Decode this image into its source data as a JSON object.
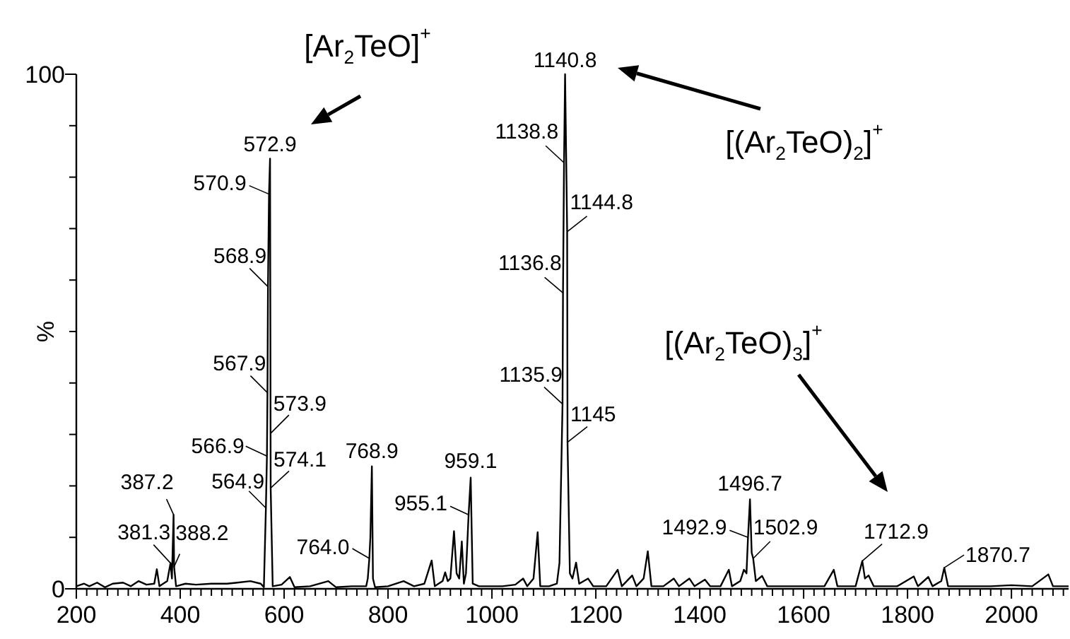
{
  "chart_data": {
    "type": "line",
    "ylabel": "%",
    "xlim": [
      200,
      2110
    ],
    "ylim": [
      0,
      100
    ],
    "xticks": [
      200,
      {
        "value": 220,
        "label": null
      },
      {
        "value": 240,
        "label": null
      },
      {
        "value": 260,
        "label": null
      },
      {
        "value": 280,
        "label": null
      },
      {
        "value": 300,
        "label": null
      },
      {
        "value": 320,
        "label": null
      },
      {
        "value": 340,
        "label": null
      },
      {
        "value": 360,
        "label": null
      },
      {
        "value": 380,
        "label": null
      },
      400,
      {
        "value": 420,
        "label": null
      },
      {
        "value": 440,
        "label": null
      },
      {
        "value": 460,
        "label": null
      },
      {
        "value": 480,
        "label": null
      },
      {
        "value": 500,
        "label": null
      },
      {
        "value": 520,
        "label": null
      },
      {
        "value": 540,
        "label": null
      },
      {
        "value": 560,
        "label": null
      },
      {
        "value": 580,
        "label": null
      },
      600,
      {
        "value": 620,
        "label": null
      },
      {
        "value": 640,
        "label": null
      },
      {
        "value": 660,
        "label": null
      },
      {
        "value": 680,
        "label": null
      },
      {
        "value": 700,
        "label": null
      },
      {
        "value": 720,
        "label": null
      },
      {
        "value": 740,
        "label": null
      },
      {
        "value": 760,
        "label": null
      },
      {
        "value": 780,
        "label": null
      },
      800,
      {
        "value": 820,
        "label": null
      },
      {
        "value": 840,
        "label": null
      },
      {
        "value": 860,
        "label": null
      },
      {
        "value": 880,
        "label": null
      },
      {
        "value": 900,
        "label": null
      },
      {
        "value": 920,
        "label": null
      },
      {
        "value": 940,
        "label": null
      },
      {
        "value": 960,
        "label": null
      },
      {
        "value": 980,
        "label": null
      },
      1000,
      {
        "value": 1020,
        "label": null
      },
      {
        "value": 1040,
        "label": null
      },
      {
        "value": 1060,
        "label": null
      },
      {
        "value": 1080,
        "label": null
      },
      {
        "value": 1100,
        "label": null
      },
      {
        "value": 1120,
        "label": null
      },
      {
        "value": 1140,
        "label": null
      },
      {
        "value": 1160,
        "label": null
      },
      {
        "value": 1180,
        "label": null
      },
      1200,
      {
        "value": 1220,
        "label": null
      },
      {
        "value": 1240,
        "label": null
      },
      {
        "value": 1260,
        "label": null
      },
      {
        "value": 1280,
        "label": null
      },
      {
        "value": 1300,
        "label": null
      },
      {
        "value": 1320,
        "label": null
      },
      {
        "value": 1340,
        "label": null
      },
      {
        "value": 1360,
        "label": null
      },
      {
        "value": 1380,
        "label": null
      },
      1400,
      {
        "value": 1420,
        "label": null
      },
      {
        "value": 1440,
        "label": null
      },
      {
        "value": 1460,
        "label": null
      },
      {
        "value": 1480,
        "label": null
      },
      {
        "value": 1500,
        "label": null
      },
      {
        "value": 1520,
        "label": null
      },
      {
        "value": 1540,
        "label": null
      },
      {
        "value": 1560,
        "label": null
      },
      {
        "value": 1580,
        "label": null
      },
      1600,
      {
        "value": 1620,
        "label": null
      },
      {
        "value": 1640,
        "label": null
      },
      {
        "value": 1660,
        "label": null
      },
      {
        "value": 1680,
        "label": null
      },
      {
        "value": 1700,
        "label": null
      },
      {
        "value": 1720,
        "label": null
      },
      {
        "value": 1740,
        "label": null
      },
      {
        "value": 1760,
        "label": null
      },
      {
        "value": 1780,
        "label": null
      },
      1800,
      {
        "value": 1820,
        "label": null
      },
      {
        "value": 1840,
        "label": null
      },
      {
        "value": 1860,
        "label": null
      },
      {
        "value": 1880,
        "label": null
      },
      {
        "value": 1900,
        "label": null
      },
      {
        "value": 1920,
        "label": null
      },
      {
        "value": 1940,
        "label": null
      },
      {
        "value": 1960,
        "label": null
      },
      {
        "value": 1980,
        "label": null
      },
      2000,
      {
        "value": 2020,
        "label": null
      },
      {
        "value": 2040,
        "label": null
      },
      {
        "value": 2060,
        "label": null
      },
      {
        "value": 2080,
        "label": null
      },
      {
        "value": 2100,
        "label": null
      }
    ],
    "yticks": [
      0,
      {
        "value": 10,
        "label": null
      },
      {
        "value": 20,
        "label": null
      },
      {
        "value": 30,
        "label": null
      },
      {
        "value": 40,
        "label": null
      },
      {
        "value": 50,
        "label": null
      },
      {
        "value": 60,
        "label": null
      },
      {
        "value": 70,
        "label": null
      },
      {
        "value": 80,
        "label": null
      },
      {
        "value": 90,
        "label": null
      },
      100
    ],
    "series": [
      {
        "color": "#000000",
        "x": [
          200,
          215,
          225,
          240,
          255,
          270,
          290,
          305,
          320,
          335,
          350,
          355,
          360,
          375,
          381.3,
          384,
          387.2,
          388.2,
          392,
          410,
          430,
          460,
          490,
          510,
          535,
          555,
          561,
          564.9,
          566.9,
          567.9,
          568.9,
          570.9,
          572.9,
          573.9,
          574.1,
          578,
          595,
          611,
          620,
          650,
          685,
          700,
          730,
          758,
          761,
          764.0,
          766,
          768.9,
          771,
          775,
          800,
          830,
          850,
          870,
          884,
          890,
          905,
          910,
          915,
          920,
          927,
          932,
          937,
          942,
          946,
          950,
          955.1,
          959.1,
          963,
          975,
          1000,
          1020,
          1045,
          1060,
          1068,
          1080,
          1088,
          1093,
          1110,
          1125,
          1130,
          1135.9,
          1136.8,
          1138.8,
          1140.8,
          1144.8,
          1145.5,
          1150,
          1155,
          1162,
          1168,
          1185,
          1195,
          1220,
          1242,
          1250,
          1270,
          1278,
          1292,
          1300,
          1307,
          1330,
          1350,
          1360,
          1380,
          1390,
          1410,
          1420,
          1440,
          1456,
          1462,
          1478,
          1485,
          1490,
          1492.9,
          1496.7,
          1500,
          1502.9,
          1508,
          1520,
          1530,
          1560,
          1600,
          1640,
          1658,
          1665,
          1700,
          1712.9,
          1718,
          1725,
          1735,
          1780,
          1812,
          1820,
          1840,
          1848,
          1865,
          1870.7,
          1878,
          1920,
          1960,
          2000,
          2040,
          2071,
          2080,
          2110
        ],
        "values": [
          0.5,
          1,
          0.5,
          1.2,
          0.3,
          1,
          1.2,
          0.5,
          1.5,
          0.8,
          1,
          3.8,
          0.5,
          1.5,
          5.0,
          2,
          14.4,
          4.3,
          0.5,
          1,
          0.8,
          1,
          1,
          1.2,
          1.5,
          1,
          0.3,
          15.7,
          25.8,
          38.1,
          58.7,
          76.7,
          83.6,
          30.2,
          19.6,
          0.5,
          0.8,
          2.3,
          0.3,
          0.5,
          1.5,
          0.3,
          0.5,
          0.5,
          2,
          5.9,
          10,
          23.8,
          2,
          0.3,
          0.5,
          1.5,
          0.5,
          1,
          5.5,
          0.5,
          1.5,
          3.2,
          1.5,
          2,
          11.2,
          3,
          2,
          9.2,
          1,
          3,
          14.4,
          21.6,
          1,
          0.5,
          0.5,
          0.5,
          0.8,
          2,
          0.5,
          2,
          11.0,
          0.5,
          0.5,
          1,
          5,
          35.9,
          57.5,
          82.8,
          100,
          69.4,
          28.5,
          3,
          2,
          5.1,
          1,
          2,
          0.5,
          0.5,
          3.7,
          0.5,
          2.6,
          0.5,
          2,
          7.3,
          0.5,
          0.5,
          2,
          0.5,
          2,
          0.5,
          1.8,
          0.5,
          0.5,
          3.7,
          0.5,
          1.5,
          3.7,
          3,
          10,
          17.4,
          7,
          5.9,
          1.5,
          2.5,
          0.5,
          0.5,
          0.5,
          0.5,
          3.7,
          0.5,
          0.5,
          5.4,
          2,
          2.6,
          0.5,
          0.5,
          2.4,
          0.5,
          2.3,
          0.5,
          1.5,
          4.1,
          0.5,
          0.5,
          0.5,
          0.7,
          0.5,
          2.8,
          0.5,
          0.5
        ]
      }
    ],
    "annotations": [
      {
        "text": "572.9",
        "x": 572.9,
        "y": 83.6
      },
      {
        "text": "570.9",
        "x": 570.9,
        "y": 76.7
      },
      {
        "text": "568.9",
        "x": 568.9,
        "y": 58.7
      },
      {
        "text": "567.9",
        "x": 567.9,
        "y": 38.1
      },
      {
        "text": "573.9",
        "x": 573.9,
        "y": 30.2
      },
      {
        "text": "566.9",
        "x": 566.9,
        "y": 25.8
      },
      {
        "text": "574.1",
        "x": 574.1,
        "y": 19.6
      },
      {
        "text": "564.9",
        "x": 564.9,
        "y": 15.7
      },
      {
        "text": "387.2",
        "x": 387.2,
        "y": 14.4
      },
      {
        "text": "381.3",
        "x": 381.3,
        "y": 5.0
      },
      {
        "text": "388.2",
        "x": 388.2,
        "y": 4.3
      },
      {
        "text": "768.9",
        "x": 768.9,
        "y": 23.8
      },
      {
        "text": "764.0",
        "x": 764.0,
        "y": 5.9
      },
      {
        "text": "959.1",
        "x": 959.1,
        "y": 21.6
      },
      {
        "text": "955.1",
        "x": 955.1,
        "y": 14.4
      },
      {
        "text": "1140.8",
        "x": 1140.8,
        "y": 100
      },
      {
        "text": "1138.8",
        "x": 1138.8,
        "y": 82.8
      },
      {
        "text": "1144.8",
        "x": 1144.8,
        "y": 69.4
      },
      {
        "text": "1136.8",
        "x": 1136.8,
        "y": 57.5
      },
      {
        "text": "1135.9",
        "x": 1135.9,
        "y": 35.9
      },
      {
        "text": "1145",
        "x": 1145.5,
        "y": 28.5
      },
      {
        "text": "1496.7",
        "x": 1496.7,
        "y": 17.4
      },
      {
        "text": "1492.9",
        "x": 1492.9,
        "y": 10
      },
      {
        "text": "1502.9",
        "x": 1502.9,
        "y": 5.9
      },
      {
        "text": "1712.9",
        "x": 1712.9,
        "y": 5.4
      },
      {
        "text": "1870.7",
        "x": 1870.7,
        "y": 4.1
      },
      "[Ar$_{2}$TeO]$^{+}$",
      "[(Ar$_{2}$TeO)$_{2}$]$^{+}$",
      "[(Ar$_{2}$TeO)$_{3}$]$^{+}$"
    ]
  }
}
